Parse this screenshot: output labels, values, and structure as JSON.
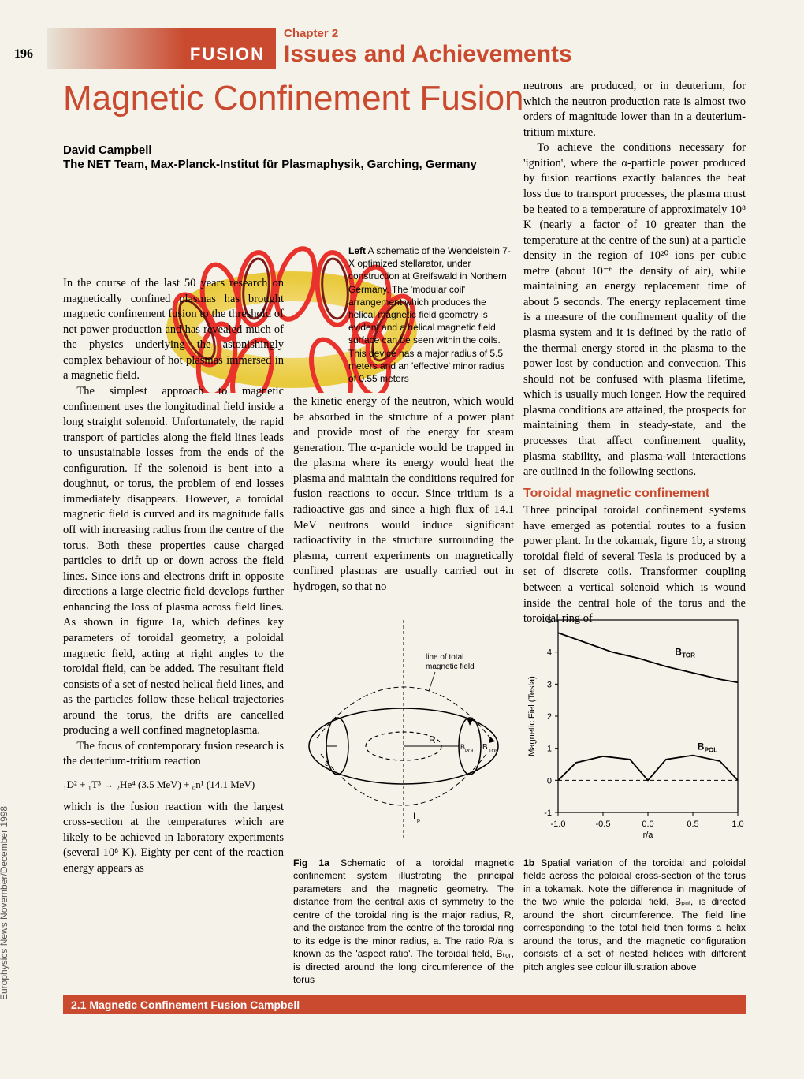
{
  "page_number": "196",
  "header_bar": "FUSION",
  "chapter_label": "Chapter 2",
  "chapter_title": "Issues and Achievements",
  "main_title": "Magnetic Confinement Fusion",
  "author": "David Campbell",
  "affiliation": "The NET Team, Max-Planck-Institut für Plasmaphysik, Garching, Germany",
  "stellarator_caption_bold": "Left",
  "stellarator_caption": " A schematic of the Wendelstein 7-X optimized stellarator, under construction at Greifswald in Northern Germany. The 'modular coil' arrangement which produces the helical magnetic field geometry is evident and a helical magnetic field surface can be seen within the coils. This device has a major radius of 5.5 meters and an 'effective' minor radius of 0.55 meters",
  "col1_p1": "In the course of the last 50 years research on magnetically confined plasmas has brought magnetic confinement fusion to the threshold of net power production and has revealed much of the physics underlying the astonishingly complex behaviour of hot plasmas immersed in a magnetic field.",
  "col1_p2": "The simplest approach to magnetic confinement uses the longitudinal field inside a long straight solenoid. Unfortunately, the rapid transport of particles along the field lines leads to unsustainable losses from the ends of the configuration. If the solenoid is bent into a doughnut, or torus, the problem of end losses immediately disappears. However, a toroidal magnetic field is curved and its magnitude falls off with increasing radius from the centre of the torus. Both these properties cause charged particles to drift up or down across the field lines. Since ions and electrons drift in opposite directions a large electric field develops further enhancing the loss of plasma across field lines. As shown in figure 1a, which defines key parameters of toroidal geometry, a poloidal magnetic field, acting at right angles to the toroidal field, can be added. The resultant field consists of a set of nested helical field lines, and as the particles follow these helical trajectories around the torus, the drifts are cancelled producing a well confined magnetoplasma.",
  "col1_p3": "The focus of contemporary fusion research is the deuterium-tritium reaction",
  "equation": "₁D² + ₁T³ → ₂He⁴ (3.5 MeV) + ₀n¹ (14.1 MeV)",
  "col1_p4": "which is the fusion reaction with the largest cross-section at the temperatures which are likely to be achieved in laboratory experiments (several 10⁸ K). Eighty per cent of the reaction energy appears as",
  "col2_p1": "the kinetic energy of the neutron, which would be absorbed in the structure of a power plant and provide most of the energy for steam generation. The α-particle would be trapped in the plasma where its energy would heat the plasma and maintain the conditions required for fusion reactions to occur. Since tritium is a radioactive gas and since a high flux of 14.1 MeV neutrons would induce significant radioactivity in the structure surrounding the plasma, current experiments on magnetically confined plasmas are usually carried out in hydrogen, so that no",
  "col3_p1": "neutrons are produced, or in deuterium, for which the neutron production rate is almost two orders of magnitude lower than in a deuterium-tritium mixture.",
  "col3_p2": "To achieve the conditions necessary for 'ignition', where the α-particle power produced by fusion reactions exactly balances the heat loss due to transport processes, the plasma must be heated to a temperature of approximately 10⁸ K (nearly a factor of 10 greater than the temperature at the centre of the sun) at a particle density in the region of 10²⁰ ions per cubic metre (about 10⁻⁶ the density of air), while maintaining an energy replacement time of about 5 seconds. The energy replacement time is a measure of the confinement quality of the plasma system and it is defined by the ratio of the thermal energy stored in the plasma to the power lost by conduction and convection. This should not be confused with plasma lifetime, which is usually much longer. How the required plasma conditions are attained, the prospects for maintaining them in steady-state, and the processes that affect confinement quality, plasma stability, and plasma-wall interactions are outlined in the following sections.",
  "section_head": "Toroidal magnetic confinement",
  "col3_p3": "Three principal toroidal confinement systems have emerged as potential routes to a fusion power plant. In the tokamak, figure 1b, a strong toroidal field of several Tesla is produced by a set of discrete coils. Transformer coupling between a vertical solenoid which is wound inside the central hole of the torus and the toroidal ring of",
  "fig1a_bold": "Fig 1a",
  "fig1a_text": " Schematic of a toroidal magnetic confinement system illustrating the principal parameters and the magnetic geometry. The distance from the central axis of symmetry to the centre of the toroidal ring is the major radius, R, and the distance from the centre of the toroidal ring to its edge is the minor radius, a. The ratio R/a is known as the 'aspect ratio'. The toroidal field, Bₜₒᵣ, is directed around the long circumference of the torus",
  "fig1b_bold": "1b",
  "fig1b_text": " Spatial variation of the toroidal and poloidal fields across the poloidal cross-section of the torus in a tokamak. Note the difference in magnitude of the two while the poloidal field, Bₚₒₗ, is directed around the short circumference. The field line corresponding to the total field then forms a helix around the torus, and the magnetic configuration consists of a set of nested helices with different pitch angles see colour illustration above",
  "footer": "2.1 Magnetic Confinement Fusion Campbell",
  "side_label": "Europhysics News November/December 1998",
  "torus": {
    "label_line": "line of total magnetic field",
    "label_R": "R",
    "label_a": "a",
    "label_Bpol": "B_POL",
    "label_Btor": "B_TOR",
    "label_Ip": "Iₚ"
  },
  "chart": {
    "ylabel": "Magnetic Fiel (Tesla)",
    "xlabel": "r/a",
    "ylim": [
      -1,
      5
    ],
    "xlim": [
      -1.0,
      1.0
    ],
    "xticks": [
      -1.0,
      -0.5,
      0.0,
      0.5,
      1.0
    ],
    "yticks": [
      -1,
      0,
      1,
      2,
      3,
      4,
      5
    ],
    "btor_label": "B_TOR",
    "bpol_label": "B_POL",
    "btor_series": [
      [
        -1.0,
        4.6
      ],
      [
        -0.7,
        4.3
      ],
      [
        -0.4,
        4.0
      ],
      [
        -0.1,
        3.8
      ],
      [
        0.2,
        3.55
      ],
      [
        0.5,
        3.35
      ],
      [
        0.8,
        3.15
      ],
      [
        1.0,
        3.05
      ]
    ],
    "bpol_series": [
      [
        -1.0,
        0.0
      ],
      [
        -0.8,
        0.55
      ],
      [
        -0.5,
        0.75
      ],
      [
        -0.2,
        0.65
      ],
      [
        0.0,
        0.0
      ],
      [
        0.2,
        0.65
      ],
      [
        0.5,
        0.78
      ],
      [
        0.8,
        0.6
      ],
      [
        1.0,
        0.0
      ]
    ],
    "line_color": "#000000",
    "grid_color": "#888888",
    "background": "#f5f2ea"
  },
  "stellarator_colors": {
    "coil": "#e8322b",
    "deep": "#7b1a18",
    "surface": "#f2d54a"
  }
}
